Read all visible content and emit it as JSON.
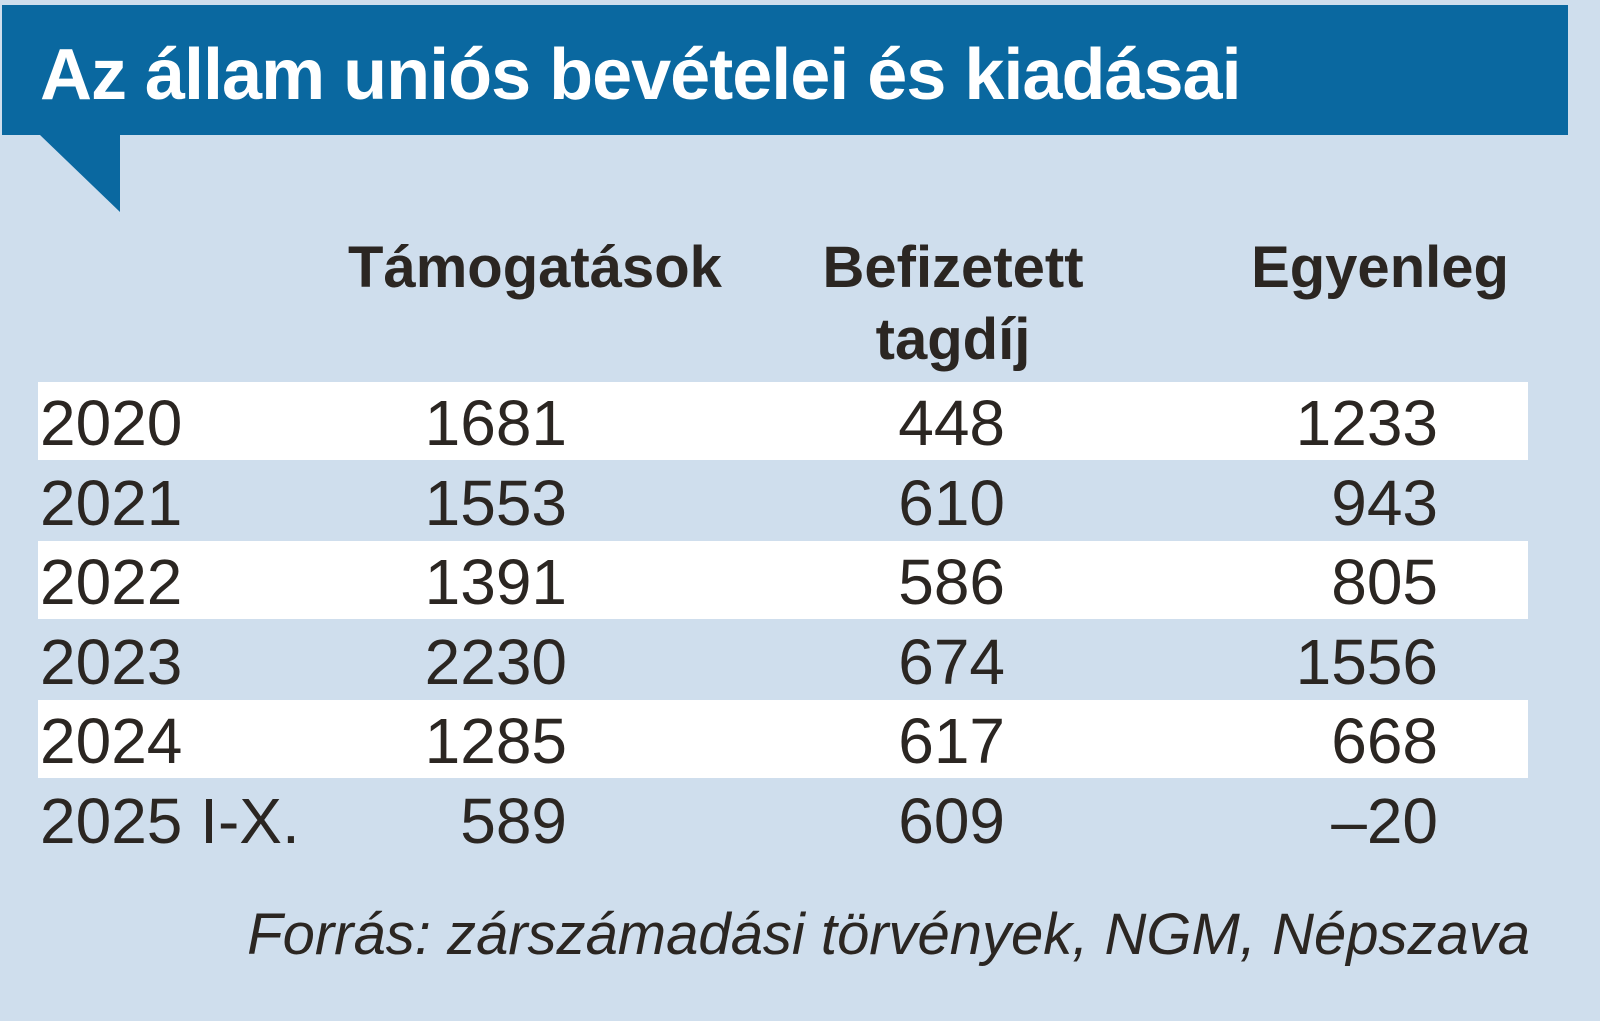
{
  "title": "Az állam uniós bevételei és kiadásai",
  "table": {
    "header": [
      "Támogatások",
      "Befizetett tagdíj",
      "Egyenleg"
    ],
    "rows": [
      [
        "2020",
        "1681",
        "448",
        "1233"
      ],
      [
        "2021",
        "1553",
        "610",
        "943"
      ],
      [
        "2022",
        "1391",
        "586",
        "805"
      ],
      [
        "2023",
        "2230",
        "674",
        "1556"
      ],
      [
        "2024",
        "1285",
        "617",
        "668"
      ],
      [
        "2025 I-X.",
        "589",
        "609",
        "–20"
      ]
    ]
  },
  "source": "Forrás: zárszámadási törvények, NGM, Népszava"
}
